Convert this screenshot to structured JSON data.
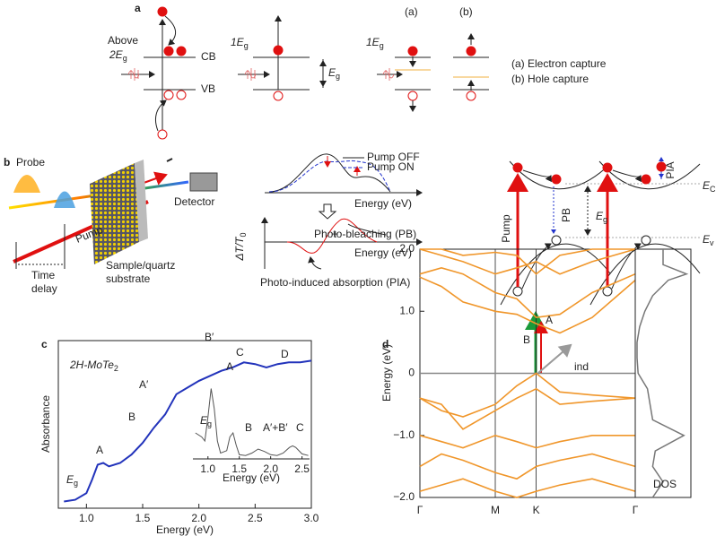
{
  "panel_labels": [
    "a",
    "b",
    "c",
    "d"
  ],
  "panel_a": {
    "above": "Above",
    "above_e": {
      "main": "2E",
      "sub": "g"
    },
    "cb": "CB",
    "vb": "VB",
    "one_e_1": {
      "main": "1E",
      "sub": "g"
    },
    "eg": {
      "main": "E",
      "sub": "g"
    },
    "one_e_2": {
      "main": "1E",
      "sub": "g"
    },
    "tag_a": "(a)",
    "tag_b": "(b)",
    "legend": [
      "(a) Electron capture",
      "(b) Hole capture"
    ]
  },
  "panel_b": {
    "probe": "Probe",
    "pump": "Pump",
    "time_delay": [
      "Time",
      "delay"
    ],
    "sample": [
      "Sample/quartz",
      "substrate"
    ],
    "detector": "Detector",
    "pump_off": "Pump OFF",
    "pump_on": "Pump ON",
    "energy_top": "Energy (eV)",
    "dt": {
      "main": "ΔT/T",
      "sub": "0"
    },
    "pb_label": "Photo-bleaching (PB)",
    "energy_bottom": "Energy (eV)",
    "plus": "+",
    "pia_label": "Photo-induced absorption (PIA)",
    "pump_right": "Pump",
    "pb": "PB",
    "eg": {
      "main": "E",
      "sub": "g"
    },
    "pia": "PIA",
    "ec": {
      "main": "E",
      "sub": "C"
    },
    "ev": {
      "main": "E",
      "sub": "v"
    }
  },
  "chart_data": [
    {
      "type": "line",
      "xlabel": "Energy (eV)",
      "ylabel": "Absorbance",
      "label": {
        "main": "2H-MoTe",
        "sub": "2"
      },
      "eg_label": {
        "main": "E",
        "sub": "g"
      },
      "annotations": [
        "A",
        "B",
        "A′",
        "B′",
        "C",
        "D"
      ],
      "color": "#2233bb",
      "x": [
        0.8,
        0.9,
        1.0,
        1.05,
        1.1,
        1.15,
        1.2,
        1.3,
        1.4,
        1.5,
        1.6,
        1.7,
        1.8,
        1.9,
        2.0,
        2.1,
        2.2,
        2.3,
        2.4,
        2.5,
        2.6,
        2.7,
        2.8,
        2.9,
        3.0
      ],
      "values": [
        0.04,
        0.05,
        0.09,
        0.17,
        0.26,
        0.27,
        0.25,
        0.27,
        0.32,
        0.39,
        0.48,
        0.56,
        0.68,
        0.72,
        0.76,
        0.79,
        0.82,
        0.84,
        0.87,
        0.86,
        0.84,
        0.86,
        0.87,
        0.87,
        0.88
      ],
      "xlim": [
        0.75,
        3.0
      ],
      "ylim": [
        0,
        1
      ],
      "xticks": [
        {
          "value": 1.0,
          "label": "1.0"
        },
        {
          "value": 1.5,
          "label": "1.5"
        },
        {
          "value": 2.0,
          "label": "2.0"
        },
        {
          "value": 2.5,
          "label": "2.5"
        },
        {
          "value": 3.0,
          "label": "3.0"
        }
      ]
    },
    {
      "type": "line",
      "xlabel": "Energy (eV)",
      "eg_label": {
        "main": "E",
        "sub": "g"
      },
      "annotations": [
        "A",
        "B",
        "A′+B′",
        "C"
      ],
      "color": "#555555",
      "x": [
        0.8,
        0.9,
        0.95,
        1.0,
        1.05,
        1.1,
        1.15,
        1.2,
        1.3,
        1.35,
        1.4,
        1.45,
        1.5,
        1.6,
        1.7,
        1.8,
        1.9,
        2.0,
        2.1,
        2.2,
        2.3,
        2.35,
        2.4,
        2.5,
        2.6
      ],
      "values": [
        0.3,
        0.25,
        0.2,
        0.5,
        0.85,
        0.6,
        0.2,
        0.05,
        0.08,
        0.25,
        0.3,
        0.15,
        0.03,
        0.02,
        0.05,
        0.1,
        0.07,
        0.03,
        0.02,
        0.05,
        0.12,
        0.14,
        0.12,
        0.04,
        0.02
      ],
      "xlim": [
        0.76,
        2.62
      ],
      "ylim": [
        0,
        1
      ],
      "xticks": [
        {
          "value": 1.0,
          "label": "1.0"
        },
        {
          "value": 1.5,
          "label": "1.5"
        },
        {
          "value": 2.0,
          "label": "2.0"
        },
        {
          "value": 2.5,
          "label": "2.5"
        }
      ]
    },
    {
      "type": "bands",
      "ylabel": "Energy (eV)",
      "color": "#f0962a",
      "arrow_labels": [
        "A",
        "B",
        "ind"
      ],
      "x": [
        0,
        0.1,
        0.2,
        0.35,
        0.45,
        0.54,
        0.65,
        0.8,
        1.0
      ],
      "series": [
        {
          "values": [
            1.55,
            1.4,
            1.15,
            1.0,
            0.95,
            0.8,
            0.65,
            0.9,
            1.5
          ]
        },
        {
          "values": [
            1.6,
            1.7,
            1.6,
            1.3,
            1.2,
            0.9,
            0.95,
            1.3,
            1.6
          ]
        },
        {
          "values": [
            2.0,
            1.9,
            1.8,
            1.6,
            1.7,
            1.8,
            1.6,
            1.8,
            2.0
          ]
        },
        {
          "values": [
            2.0,
            2.0,
            1.9,
            1.95,
            1.9,
            1.6,
            1.9,
            2.0,
            2.0
          ]
        },
        {
          "values": [
            -0.4,
            -0.6,
            -0.7,
            -0.5,
            -0.2,
            0.0,
            -0.3,
            -0.35,
            -0.4
          ]
        },
        {
          "values": [
            -0.4,
            -0.5,
            -0.9,
            -0.6,
            -0.4,
            -0.25,
            -0.5,
            -0.45,
            -0.4
          ]
        },
        {
          "values": [
            -1.0,
            -1.1,
            -1.2,
            -1.0,
            -1.1,
            -1.2,
            -1.1,
            -1.0,
            -1.0
          ]
        },
        {
          "values": [
            -1.5,
            -1.3,
            -1.4,
            -1.6,
            -1.7,
            -1.5,
            -1.4,
            -1.3,
            -1.5
          ]
        },
        {
          "values": [
            -1.9,
            -1.8,
            -1.7,
            -1.9,
            -2.0,
            -1.9,
            -1.8,
            -1.7,
            -1.9
          ]
        }
      ],
      "xlim": [
        0,
        1
      ],
      "ylim": [
        -2.0,
        2.0
      ],
      "xticks": [
        {
          "value": 0,
          "label": "Γ"
        },
        {
          "value": 0.35,
          "label": "M"
        },
        {
          "value": 0.54,
          "label": "K"
        },
        {
          "value": 1.0,
          "label": "Γ"
        }
      ],
      "yticks": [
        {
          "value": -2.0,
          "label": "−2.0"
        },
        {
          "value": -1.0,
          "label": "−1.0"
        },
        0,
        {
          "value": 1.0,
          "label": "1.0"
        },
        {
          "value": 2.0,
          "label": "2.0"
        }
      ]
    },
    {
      "type": "dos",
      "label": "DOS",
      "color": "#777777",
      "y": [
        -2.0,
        -1.75,
        -1.5,
        -1.25,
        -1.0,
        -0.75,
        -0.5,
        -0.25,
        0,
        0.25,
        0.5,
        0.75,
        1.0,
        1.25,
        1.5,
        1.6,
        1.75,
        2.0
      ],
      "values": [
        0.3,
        0.5,
        0.3,
        0.35,
        0.9,
        0.3,
        0.25,
        0.2,
        0.02,
        0.0,
        0.0,
        0.05,
        0.15,
        0.3,
        0.6,
        0.95,
        0.5,
        0.5
      ],
      "xlim": [
        0,
        1
      ],
      "ylim": [
        -2.0,
        2.0
      ]
    }
  ]
}
